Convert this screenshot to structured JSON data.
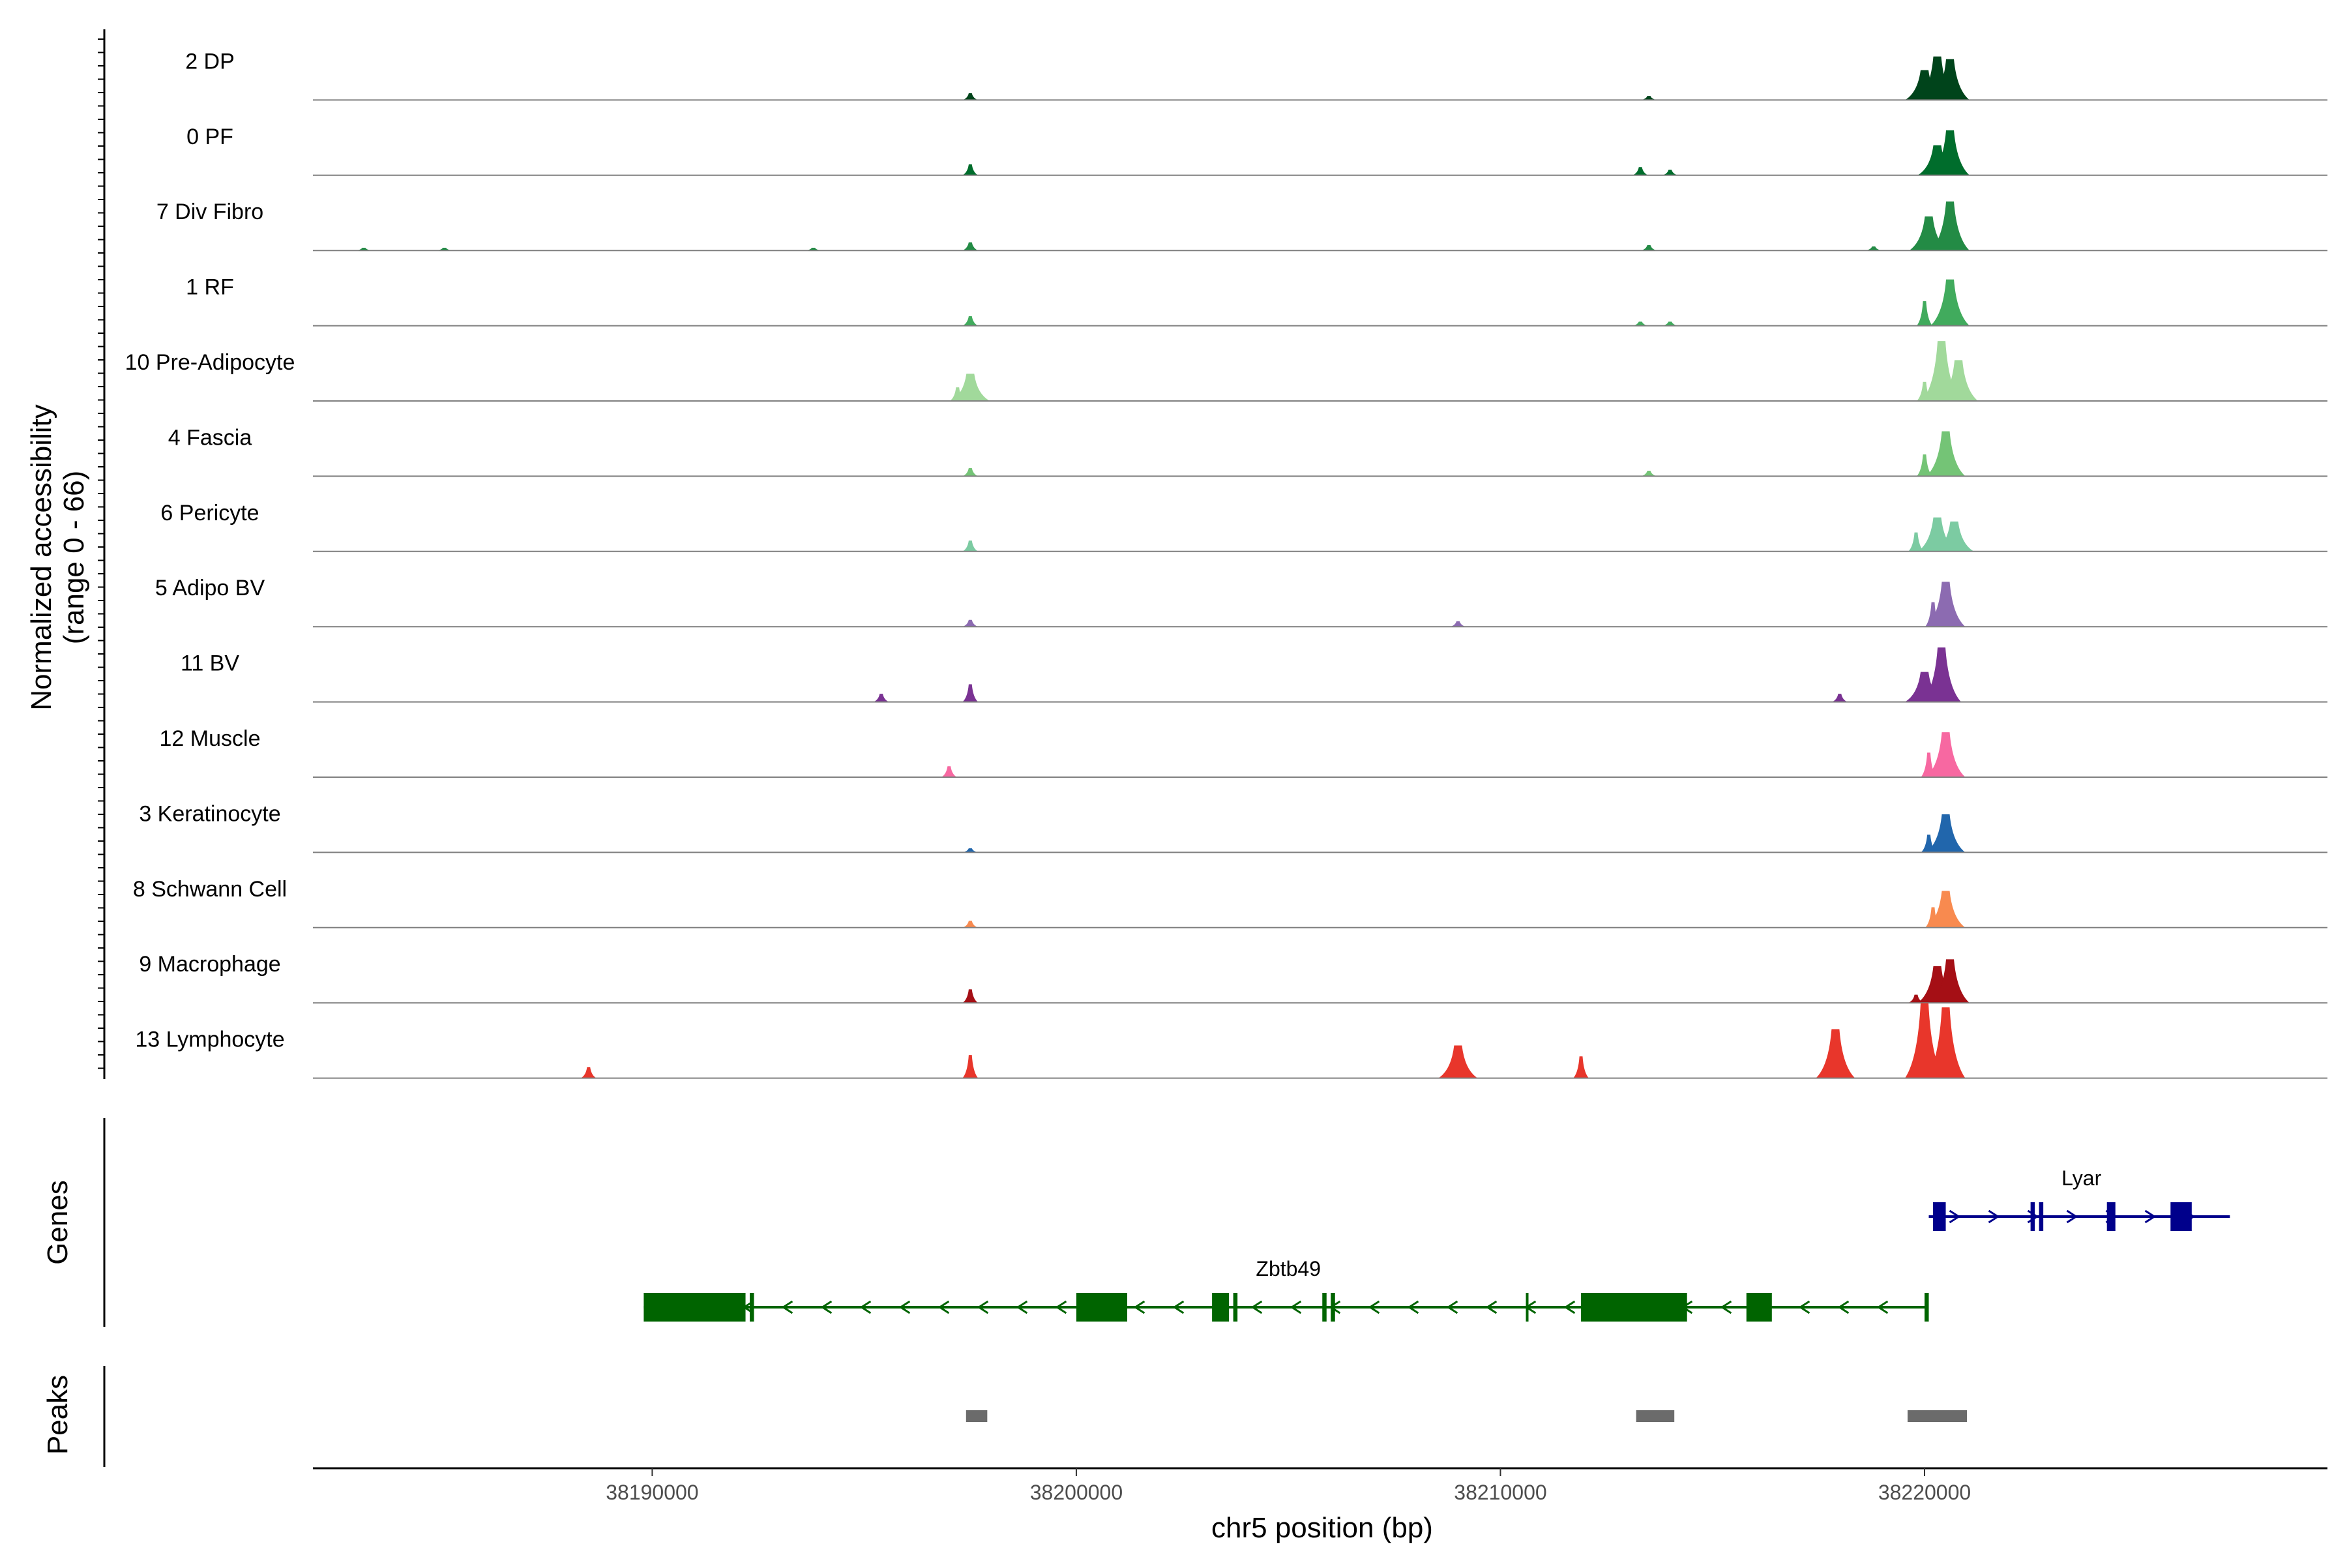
{
  "chart_data": {
    "type": "area",
    "chromosome": "chr5",
    "xlabel": "chr5 position (bp)",
    "ylabel_line1": "Normalized accessibility",
    "ylabel_line2": "(range 0 - 66)",
    "xlim": [
      38182000,
      38229500
    ],
    "ylim": [
      0,
      66
    ],
    "xticks": [
      {
        "value": 38190000,
        "label": "38190000"
      },
      {
        "value": 38200000,
        "label": "38200000"
      },
      {
        "value": 38210000,
        "label": "38210000"
      },
      {
        "value": 38220000,
        "label": "38220000"
      }
    ],
    "panel_labels": {
      "genes": "Genes",
      "peaks": "Peaks"
    },
    "series": [
      {
        "name": "2 DP",
        "color": "#00441b",
        "peaks": [
          [
            38197500,
            5
          ],
          [
            38213500,
            3
          ],
          [
            38220000,
            22
          ],
          [
            38220300,
            32
          ],
          [
            38220600,
            30
          ]
        ]
      },
      {
        "name": "0 PF",
        "color": "#006d2c",
        "peaks": [
          [
            38197500,
            8
          ],
          [
            38213300,
            6
          ],
          [
            38214000,
            4
          ],
          [
            38220300,
            22
          ],
          [
            38220600,
            33
          ]
        ]
      },
      {
        "name": "7 Div Fibro",
        "color": "#238b45",
        "peaks": [
          [
            38183200,
            2
          ],
          [
            38185100,
            2
          ],
          [
            38193800,
            2
          ],
          [
            38197500,
            6
          ],
          [
            38213500,
            4
          ],
          [
            38218800,
            3
          ],
          [
            38220100,
            25
          ],
          [
            38220600,
            36
          ]
        ]
      },
      {
        "name": "1 RF",
        "color": "#41ab5d",
        "peaks": [
          [
            38197500,
            7
          ],
          [
            38213300,
            3
          ],
          [
            38214000,
            3
          ],
          [
            38220000,
            18
          ],
          [
            38220600,
            34
          ]
        ]
      },
      {
        "name": "10 Pre-Adipocyte",
        "color": "#a1d99b",
        "peaks": [
          [
            38197200,
            10
          ],
          [
            38197500,
            20
          ],
          [
            38220000,
            14
          ],
          [
            38220400,
            44
          ],
          [
            38220800,
            30
          ]
        ]
      },
      {
        "name": "4 Fascia",
        "color": "#74c476",
        "peaks": [
          [
            38197500,
            6
          ],
          [
            38213500,
            4
          ],
          [
            38220000,
            16
          ],
          [
            38220500,
            33
          ]
        ]
      },
      {
        "name": "6 Pericyte",
        "color": "#7ccba2",
        "peaks": [
          [
            38197500,
            8
          ],
          [
            38219800,
            14
          ],
          [
            38220300,
            25
          ],
          [
            38220700,
            22
          ]
        ]
      },
      {
        "name": "5 Adipo BV",
        "color": "#8c6bb1",
        "peaks": [
          [
            38197500,
            5
          ],
          [
            38209000,
            4
          ],
          [
            38220200,
            18
          ],
          [
            38220500,
            33
          ]
        ]
      },
      {
        "name": "11 BV",
        "color": "#7a3293",
        "peaks": [
          [
            38195400,
            6
          ],
          [
            38197500,
            13
          ],
          [
            38218000,
            6
          ],
          [
            38220000,
            22
          ],
          [
            38220400,
            40
          ]
        ]
      },
      {
        "name": "12 Muscle",
        "color": "#f768a1",
        "peaks": [
          [
            38197000,
            8
          ],
          [
            38220100,
            18
          ],
          [
            38220500,
            33
          ]
        ]
      },
      {
        "name": "3 Keratinocyte",
        "color": "#2166ac",
        "peaks": [
          [
            38197500,
            3
          ],
          [
            38220100,
            13
          ],
          [
            38220500,
            28
          ]
        ]
      },
      {
        "name": "8 Schwann Cell",
        "color": "#f88a4f",
        "peaks": [
          [
            38197500,
            5
          ],
          [
            38220200,
            15
          ],
          [
            38220500,
            27
          ]
        ]
      },
      {
        "name": "9 Macrophage",
        "color": "#a50f15",
        "peaks": [
          [
            38197500,
            10
          ],
          [
            38219800,
            6
          ],
          [
            38220300,
            27
          ],
          [
            38220600,
            32
          ]
        ]
      },
      {
        "name": "13 Lymphocyte",
        "color": "#e8362b",
        "peaks": [
          [
            38188500,
            8
          ],
          [
            38197500,
            17
          ],
          [
            38209000,
            24
          ],
          [
            38211900,
            16
          ],
          [
            38217900,
            36
          ],
          [
            38220000,
            55
          ],
          [
            38220500,
            52
          ]
        ]
      }
    ],
    "genes": [
      {
        "name": "Zbtb49",
        "strand": "-",
        "start": 38189800,
        "end": 38220100,
        "color": "#006400",
        "exons": [
          [
            38189800,
            38192200
          ],
          [
            38192300,
            38192400
          ],
          [
            38200000,
            38201200
          ],
          [
            38203200,
            38203600
          ],
          [
            38203700,
            38203800
          ],
          [
            38205800,
            38205900
          ],
          [
            38206000,
            38206100
          ],
          [
            38210600,
            38210650
          ],
          [
            38211900,
            38214400
          ],
          [
            38215800,
            38216400
          ],
          [
            38220000,
            38220100
          ]
        ]
      },
      {
        "name": "Lyar",
        "strand": "+",
        "start": 38220100,
        "end": 38227200,
        "color": "#00008b",
        "exons": [
          [
            38220200,
            38220500
          ],
          [
            38222500,
            38222600
          ],
          [
            38222700,
            38222800
          ],
          [
            38224300,
            38224500
          ],
          [
            38225800,
            38226300
          ]
        ]
      }
    ],
    "peak_regions": [
      [
        38197400,
        38197900
      ],
      [
        38213200,
        38214100
      ],
      [
        38219600,
        38221000
      ]
    ]
  }
}
